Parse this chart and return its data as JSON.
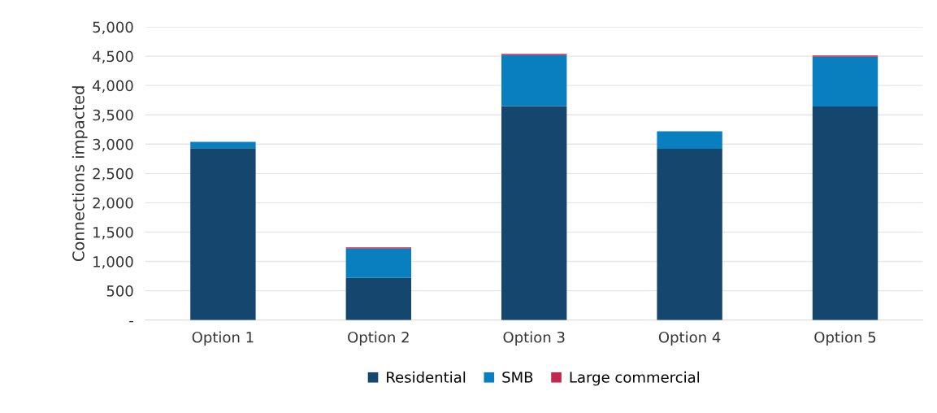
{
  "chart_data": {
    "type": "bar",
    "stacked": true,
    "ylabel": "Connections impacted",
    "categories": [
      "Option 1",
      "Option 2",
      "Option 3",
      "Option 4",
      "Option 5"
    ],
    "series": [
      {
        "name": "Residential",
        "color": "#15466e",
        "values": [
          2930,
          720,
          3650,
          2920,
          3640
        ]
      },
      {
        "name": "SMB",
        "color": "#0a7fc0",
        "values": [
          110,
          500,
          870,
          300,
          850
        ]
      },
      {
        "name": "Large commercial",
        "color": "#c0294f",
        "values": [
          null,
          20,
          20,
          null,
          20
        ]
      }
    ],
    "ylim": [
      0,
      5000
    ],
    "yticks": [
      {
        "value": 0,
        "label": "-"
      },
      {
        "value": 500,
        "label": "500"
      },
      {
        "value": 1000,
        "label": "1,000"
      },
      {
        "value": 1500,
        "label": "1,500"
      },
      {
        "value": 2000,
        "label": "2,000"
      },
      {
        "value": 2500,
        "label": "2,500"
      },
      {
        "value": 3000,
        "label": "3,000"
      },
      {
        "value": 3500,
        "label": "3,500"
      },
      {
        "value": 4000,
        "label": "4,000"
      },
      {
        "value": 4500,
        "label": "4,500"
      },
      {
        "value": 5000,
        "label": "5,000"
      }
    ],
    "grid": "y",
    "legend": "bottom"
  }
}
